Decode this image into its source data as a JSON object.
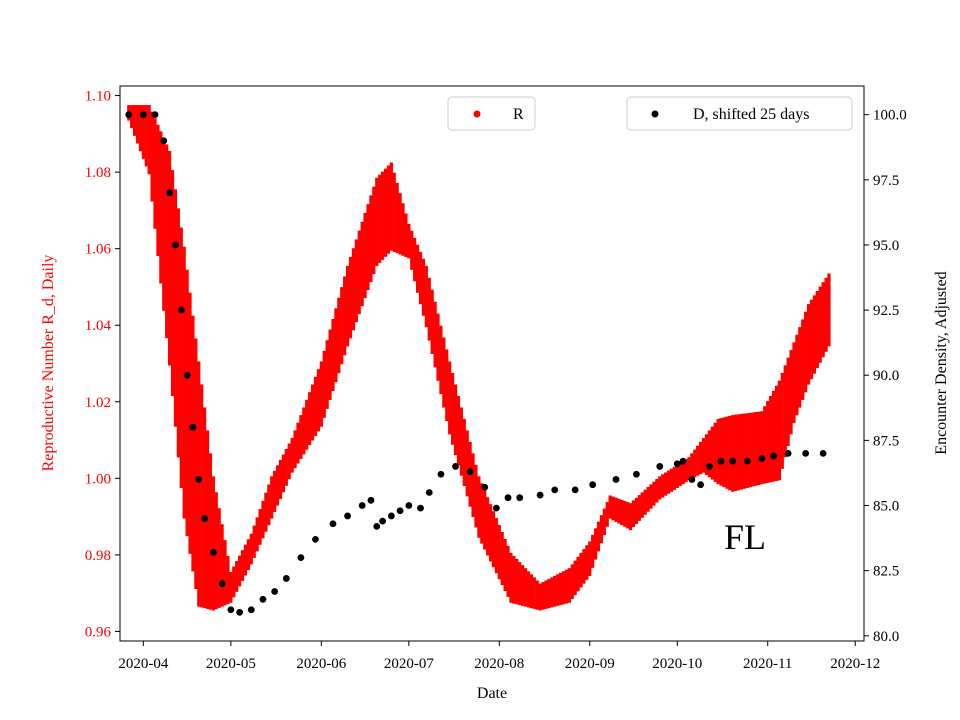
{
  "chart_data": {
    "type": "scatter",
    "xlabel": "Date",
    "ylabel_left": "Reproductive Number R_d, Daily",
    "ylabel_right": "Encounter Density, Adjusted",
    "annotation": "FL",
    "x_range": [
      "2020-03-24",
      "2020-12-04"
    ],
    "y_left_range": [
      0.9575,
      1.1025
    ],
    "y_right_range": [
      79.8,
      101.1
    ],
    "x_ticks": [
      "2020-04",
      "2020-05",
      "2020-06",
      "2020-07",
      "2020-08",
      "2020-09",
      "2020-10",
      "2020-11",
      "2020-12"
    ],
    "y_left_ticks": [
      "0.96",
      "0.98",
      "1.00",
      "1.02",
      "1.04",
      "1.06",
      "1.08",
      "1.10"
    ],
    "y_right_ticks": [
      "80.0",
      "82.5",
      "85.0",
      "87.5",
      "90.0",
      "92.5",
      "95.0",
      "97.5",
      "100.0"
    ],
    "colors": {
      "R": "#ff0000",
      "D": "#000000",
      "left_axis_text": "#ff0000"
    },
    "legend": {
      "R_label": "R",
      "D_label": "D, shifted 25 days",
      "placement": "top-center and top-right"
    },
    "series": [
      {
        "name": "R",
        "axis": "left",
        "style": "band",
        "x": [
          "2020-03-27",
          "2020-04-03",
          "2020-04-10",
          "2020-04-15",
          "2020-04-20",
          "2020-04-25",
          "2020-05-01",
          "2020-05-08",
          "2020-05-15",
          "2020-05-22",
          "2020-06-01",
          "2020-06-10",
          "2020-06-20",
          "2020-06-25",
          "2020-07-01",
          "2020-07-07",
          "2020-07-15",
          "2020-07-25",
          "2020-08-05",
          "2020-08-15",
          "2020-08-25",
          "2020-09-01",
          "2020-09-08",
          "2020-09-15",
          "2020-09-25",
          "2020-10-05",
          "2020-10-10",
          "2020-10-15",
          "2020-10-20",
          "2020-10-30",
          "2020-11-05",
          "2020-11-10",
          "2020-11-15",
          "2020-11-22"
        ],
        "low": [
          1.094,
          1.08,
          1.03,
          0.99,
          0.967,
          0.966,
          0.968,
          0.978,
          0.99,
          1.002,
          1.014,
          1.035,
          1.056,
          1.06,
          1.058,
          1.04,
          1.012,
          0.985,
          0.968,
          0.966,
          0.968,
          0.975,
          0.99,
          0.987,
          0.995,
          1.0,
          1.002,
          0.999,
          0.997,
          0.999,
          1.0,
          1.015,
          1.025,
          1.035
        ],
        "high": [
          1.097,
          1.097,
          1.085,
          1.06,
          1.03,
          1.0,
          0.975,
          0.985,
          1.0,
          1.01,
          1.03,
          1.055,
          1.078,
          1.082,
          1.066,
          1.055,
          1.03,
          1.0,
          0.98,
          0.972,
          0.976,
          0.983,
          0.995,
          0.993,
          1.0,
          1.005,
          1.01,
          1.015,
          1.016,
          1.017,
          1.025,
          1.035,
          1.045,
          1.053
        ]
      },
      {
        "name": "D, shifted 25 days",
        "axis": "right",
        "style": "points",
        "x": [
          "2020-03-27",
          "2020-04-01",
          "2020-04-05",
          "2020-04-08",
          "2020-04-10",
          "2020-04-12",
          "2020-04-14",
          "2020-04-16",
          "2020-04-18",
          "2020-04-20",
          "2020-04-22",
          "2020-04-25",
          "2020-04-28",
          "2020-05-01",
          "2020-05-04",
          "2020-05-08",
          "2020-05-12",
          "2020-05-16",
          "2020-05-20",
          "2020-05-25",
          "2020-05-30",
          "2020-06-05",
          "2020-06-10",
          "2020-06-15",
          "2020-06-18",
          "2020-06-20",
          "2020-06-22",
          "2020-06-25",
          "2020-06-28",
          "2020-07-01",
          "2020-07-05",
          "2020-07-08",
          "2020-07-12",
          "2020-07-17",
          "2020-07-22",
          "2020-07-27",
          "2020-07-31",
          "2020-08-04",
          "2020-08-08",
          "2020-08-15",
          "2020-08-20",
          "2020-08-27",
          "2020-09-02",
          "2020-09-10",
          "2020-09-17",
          "2020-09-25",
          "2020-10-01",
          "2020-10-03",
          "2020-10-06",
          "2020-10-09",
          "2020-10-12",
          "2020-10-16",
          "2020-10-20",
          "2020-10-25",
          "2020-10-30",
          "2020-11-03",
          "2020-11-08",
          "2020-11-14",
          "2020-11-20"
        ],
        "values": [
          100.0,
          100.0,
          100.0,
          99.0,
          97.0,
          95.0,
          92.5,
          90.0,
          88.0,
          86.0,
          84.5,
          83.2,
          82.0,
          81.0,
          80.9,
          81.0,
          81.4,
          81.7,
          82.2,
          83.0,
          83.7,
          84.3,
          84.6,
          85.0,
          85.2,
          84.2,
          84.4,
          84.6,
          84.8,
          85.0,
          84.9,
          85.5,
          86.2,
          86.5,
          86.3,
          85.7,
          84.9,
          85.3,
          85.3,
          85.4,
          85.6,
          85.6,
          85.8,
          86.0,
          86.2,
          86.5,
          86.6,
          86.7,
          86.0,
          85.8,
          86.5,
          86.7,
          86.7,
          86.7,
          86.8,
          86.9,
          87.0,
          87.0,
          87.0
        ]
      }
    ]
  }
}
